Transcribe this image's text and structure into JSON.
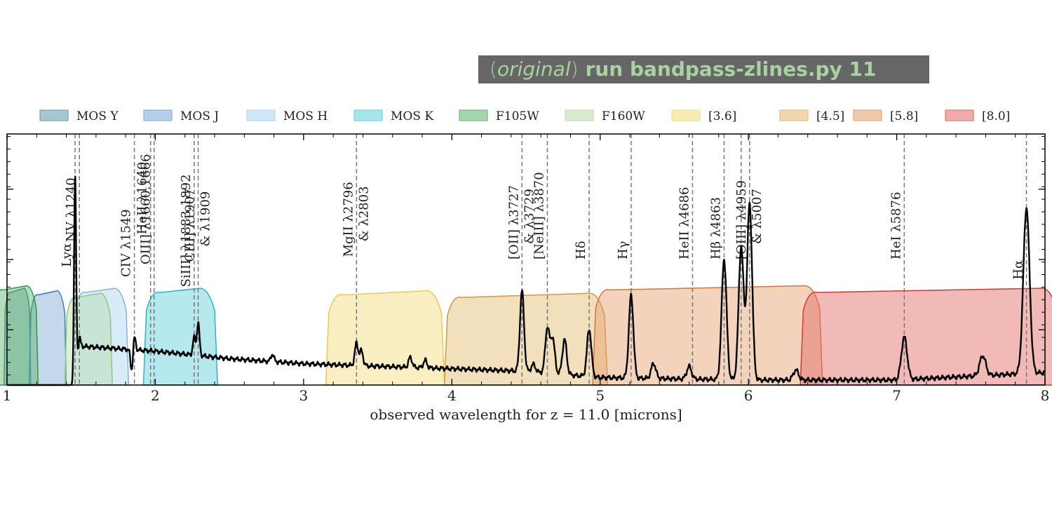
{
  "banner": {
    "open_paren": "(",
    "word": "original",
    "close_paren": ")",
    "command": "run bandpass-zlines.py 11"
  },
  "chart_data": {
    "type": "line",
    "xlabel": "observed wavelength for z = 11.0 [microns]",
    "xlim": [
      1,
      8
    ],
    "ylim": [
      0,
      1
    ],
    "x_ticks": [
      1,
      2,
      3,
      4,
      5,
      6,
      7,
      8
    ],
    "legend_position": "top",
    "legend": [
      {
        "name": "MOS Y",
        "color": "#5f9aa8"
      },
      {
        "name": "MOS J",
        "color": "#7aa9d3"
      },
      {
        "name": "MOS H",
        "color": "#a8d2ef"
      },
      {
        "name": "MOS K",
        "color": "#5ccfd9"
      },
      {
        "name": "F105W",
        "color": "#5bb46a"
      },
      {
        "name": "F160W",
        "color": "#b6dca8"
      },
      {
        "name": "[3.6]",
        "color": "#f3dc78"
      },
      {
        "name": "[4.5]",
        "color": "#e3b76a"
      },
      {
        "name": "[5.8]",
        "color": "#e59d6a"
      },
      {
        "name": "[8.0]",
        "color": "#e3675f"
      }
    ],
    "bandpasses": [
      {
        "name": "MOS Y",
        "color": "#5f9aa8",
        "edge": "#3d7b8c",
        "range": [
          0.98,
          1.16
        ],
        "level": 0.38
      },
      {
        "name": "MOS J",
        "color": "#7aa9d3",
        "edge": "#3d77ad",
        "range": [
          1.15,
          1.4
        ],
        "level": 0.37
      },
      {
        "name": "MOS H",
        "color": "#a8d2ef",
        "edge": "#7fb5e0",
        "range": [
          1.44,
          1.82
        ],
        "level": 0.38
      },
      {
        "name": "MOS K",
        "color": "#5ccfd9",
        "edge": "#25b6c6",
        "range": [
          1.92,
          2.42
        ],
        "level": 0.38
      },
      {
        "name": "F105W",
        "color": "#5bb46a",
        "edge": "#2f9a44",
        "range": [
          0.9,
          1.21
        ],
        "level": 0.39
      },
      {
        "name": "F160W",
        "color": "#b6dca8",
        "edge": "#8fca7c",
        "range": [
          1.39,
          1.71
        ],
        "level": 0.36
      },
      {
        "name": "[3.6]",
        "color": "#f3dc78",
        "edge": "#e9c94f",
        "range": [
          3.15,
          3.95
        ],
        "level": 0.37
      },
      {
        "name": "[4.5]",
        "color": "#e3b76a",
        "edge": "#d2983e",
        "range": [
          3.95,
          5.05
        ],
        "level": 0.36
      },
      {
        "name": "[5.8]",
        "color": "#e59d6a",
        "edge": "#d2773c",
        "range": [
          4.95,
          6.5
        ],
        "level": 0.39
      },
      {
        "name": "[8.0]",
        "color": "#e3675f",
        "edge": "#cc3c35",
        "range": [
          6.35,
          8.1
        ],
        "level": 0.38
      }
    ],
    "lines": [
      {
        "x": 1.459,
        "label": "Lyα",
        "top": 0.47
      },
      {
        "x": 1.488,
        "label": "NV λ1240",
        "top": 0.57
      },
      {
        "x": 1.859,
        "label": "CIV λ1549",
        "top": 0.43
      },
      {
        "x": 1.968,
        "label": "HeII λ1640",
        "top": 0.6
      },
      {
        "x": 1.992,
        "label": "OIII] λ1660,1666",
        "top": 0.48
      },
      {
        "x": 2.262,
        "label": "SiIII] λ1883,1892",
        "top": 0.39
      },
      {
        "x": 2.289,
        "label": "CIII] λ1907",
        "label2": "& λ1909",
        "top": 0.49
      },
      {
        "x": 3.357,
        "label": "MgII λ2796",
        "label2": "& λ2803",
        "top": 0.51
      },
      {
        "x": 4.473,
        "label": "[OII] λ3727",
        "label2": "& λ3729",
        "top": 0.5
      },
      {
        "x": 4.644,
        "label": "[NeIII] λ3870",
        "top": 0.5
      },
      {
        "x": 4.926,
        "label": "Hδ",
        "top": 0.5
      },
      {
        "x": 5.209,
        "label": "Hγ",
        "top": 0.5
      },
      {
        "x": 5.623,
        "label": "HeII λ4686",
        "top": 0.5
      },
      {
        "x": 5.836,
        "label": "Hβ λ4863",
        "top": 0.5
      },
      {
        "x": 5.951,
        "label": "",
        "top": 0.5
      },
      {
        "x": 6.008,
        "label": "[OIII] λ4959",
        "label2": "& λ5007",
        "top": 0.5
      },
      {
        "x": 7.051,
        "label": "HeI λ5876",
        "top": 0.5
      },
      {
        "x": 7.875,
        "label": "Hα",
        "top": 0.42
      }
    ],
    "spectrum": {
      "continuum": [
        [
          1.0,
          0.0
        ],
        [
          1.45,
          0.0
        ],
        [
          1.49,
          0.155
        ],
        [
          2.0,
          0.135
        ],
        [
          2.5,
          0.105
        ],
        [
          3.0,
          0.085
        ],
        [
          3.5,
          0.075
        ],
        [
          4.0,
          0.065
        ],
        [
          4.5,
          0.055
        ],
        [
          5.0,
          0.03
        ],
        [
          5.5,
          0.025
        ],
        [
          6.0,
          0.02
        ],
        [
          7.0,
          0.02
        ],
        [
          8.0,
          0.05
        ]
      ],
      "peaks": [
        {
          "x": 1.459,
          "h": 0.8
        },
        {
          "x": 1.488,
          "h": 0.04
        },
        {
          "x": 1.84,
          "h": -0.08
        },
        {
          "x": 1.86,
          "h": 0.05
        },
        {
          "x": 2.262,
          "h": 0.07
        },
        {
          "x": 2.289,
          "h": 0.13
        },
        {
          "x": 2.79,
          "h": 0.03
        },
        {
          "x": 3.357,
          "h": 0.09
        },
        {
          "x": 3.39,
          "h": 0.06
        },
        {
          "x": 3.72,
          "h": 0.04
        },
        {
          "x": 3.82,
          "h": 0.03
        },
        {
          "x": 4.473,
          "h": 0.32
        },
        {
          "x": 4.55,
          "h": 0.03
        },
        {
          "x": 4.644,
          "h": 0.18
        },
        {
          "x": 4.68,
          "h": 0.14
        },
        {
          "x": 4.76,
          "h": 0.14
        },
        {
          "x": 4.926,
          "h": 0.19
        },
        {
          "x": 5.209,
          "h": 0.33
        },
        {
          "x": 5.36,
          "h": 0.06
        },
        {
          "x": 5.6,
          "h": 0.05
        },
        {
          "x": 5.836,
          "h": 0.48
        },
        {
          "x": 5.951,
          "h": 0.53
        },
        {
          "x": 6.008,
          "h": 0.7
        },
        {
          "x": 6.32,
          "h": 0.04
        },
        {
          "x": 7.051,
          "h": 0.17
        },
        {
          "x": 7.58,
          "h": 0.08
        },
        {
          "x": 7.875,
          "h": 0.66
        }
      ]
    }
  }
}
